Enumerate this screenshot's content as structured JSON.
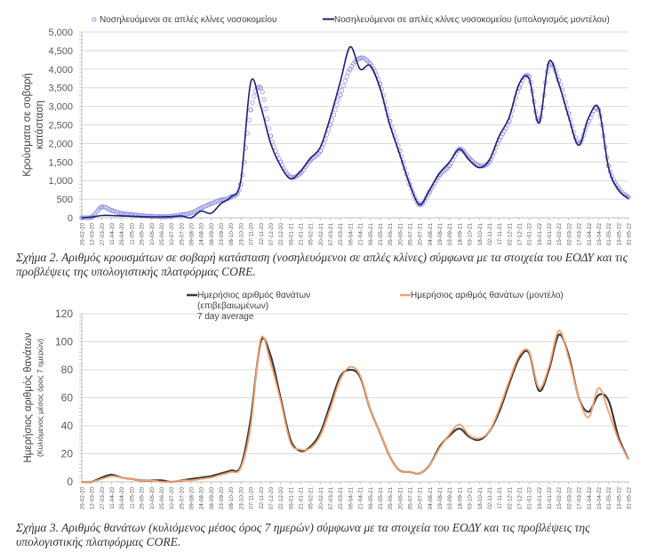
{
  "chart_data": [
    {
      "type": "line",
      "title": "",
      "ylabel": "Κρούσματα σε σοβαρή κατάσταση",
      "ylabel_lines": [
        "Κρούσματα σε σοβαρή",
        "κατάσταση"
      ],
      "xlabel": "",
      "ylim": [
        0,
        5000
      ],
      "yticks": [
        0,
        500,
        1000,
        1500,
        2000,
        2500,
        3000,
        3500,
        4000,
        4500,
        5000
      ],
      "ytick_labels": [
        "0",
        "500",
        "1,000",
        "1,500",
        "2,000",
        "2,500",
        "3,000",
        "3,500",
        "4,000",
        "4,500",
        "5,000"
      ],
      "grid": true,
      "legend_position": "top",
      "x": [
        "26-02-20",
        "12-03-20",
        "27-03-20",
        "11-04-20",
        "26-04-20",
        "11-05-20",
        "26-05-20",
        "10-06-20",
        "25-06-20",
        "10-07-20",
        "25-07-20",
        "09-08-20",
        "24-08-20",
        "08-09-20",
        "23-09-20",
        "08-10-20",
        "23-10-20",
        "07-11-20",
        "22-11-20",
        "07-12-20",
        "22-12-20",
        "06-01-21",
        "21-01-21",
        "05-02-21",
        "20-02-21",
        "07-03-21",
        "22-03-21",
        "06-04-21",
        "21-04-21",
        "06-05-21",
        "21-05-21",
        "05-06-21",
        "20-06-21",
        "05-07-21",
        "20-07-21",
        "04-08-21",
        "19-08-21",
        "03-09-21",
        "18-09-21",
        "03-10-21",
        "18-10-21",
        "02-11-21",
        "17-11-21",
        "02-12-21",
        "17-12-21",
        "01-01-22",
        "16-01-22",
        "31-01-22",
        "15-02-22",
        "02-03-22",
        "17-03-22",
        "01-04-22",
        "16-04-22",
        "01-05-22",
        "16-05-22",
        "31-05-22"
      ],
      "series": [
        {
          "name": "Νοσηλευόμενοι σε απλές κλίνες νοσοκομείου",
          "style": "markers",
          "color": "#8f8fe0",
          "values": [
            0,
            20,
            290,
            200,
            120,
            90,
            60,
            40,
            30,
            40,
            80,
            130,
            260,
            380,
            480,
            560,
            900,
            2900,
            3500,
            2200,
            1500,
            1100,
            1200,
            1550,
            1800,
            2500,
            3300,
            4000,
            4300,
            4150,
            3600,
            2600,
            1800,
            900,
            350,
            700,
            1150,
            1400,
            1850,
            1600,
            1400,
            1500,
            2100,
            2600,
            3500,
            3800,
            2600,
            4100,
            3700,
            2800,
            2000,
            2600,
            2900,
            1400,
            800,
            550
          ]
        },
        {
          "name": "Νοσηλευόμενοι σε απλές κλίνες νοσοκομείου (υπολογισμός μοντέλου)",
          "style": "line",
          "color": "#1f1f78",
          "values": [
            0,
            20,
            60,
            60,
            50,
            40,
            30,
            25,
            25,
            30,
            50,
            0,
            180,
            120,
            380,
            560,
            1000,
            3650,
            3000,
            2000,
            1400,
            1050,
            1250,
            1600,
            1900,
            2700,
            3650,
            4600,
            4000,
            4100,
            3500,
            2500,
            1700,
            900,
            350,
            750,
            1200,
            1500,
            1850,
            1550,
            1350,
            1550,
            2200,
            2700,
            3600,
            3750,
            2550,
            4200,
            3600,
            2700,
            1950,
            2700,
            2950,
            1350,
            750,
            520
          ]
        }
      ]
    },
    {
      "type": "line",
      "title": "",
      "ylabel": "Ημερήσιος αριθμός θανάτων (Κυλιόμενος μέσος όρος 7 ημερών)",
      "ylabel_lines": [
        "Ημερήσιος αριθμός θανάτων",
        "(Κυλιόμενος μέσος όρος 7 ημερών)"
      ],
      "xlabel": "",
      "ylim": [
        0,
        120
      ],
      "yticks": [
        0,
        20,
        40,
        60,
        80,
        100,
        120
      ],
      "ytick_labels": [
        "0",
        "20",
        "40",
        "60",
        "80",
        "100",
        "120"
      ],
      "grid": true,
      "legend_position": "top",
      "x": [
        "26-02-20",
        "12-03-20",
        "27-03-20",
        "11-04-20",
        "26-04-20",
        "11-05-20",
        "26-05-20",
        "10-06-20",
        "25-06-20",
        "10-07-20",
        "25-07-20",
        "09-08-20",
        "24-08-20",
        "08-09-20",
        "23-09-20",
        "08-10-20",
        "23-10-20",
        "07-11-20",
        "22-11-20",
        "07-12-20",
        "22-12-20",
        "06-01-21",
        "21-01-21",
        "05-02-21",
        "20-02-21",
        "07-03-21",
        "22-03-21",
        "06-04-21",
        "21-04-21",
        "06-05-21",
        "21-05-21",
        "05-06-21",
        "20-06-21",
        "05-07-21",
        "20-07-21",
        "04-08-21",
        "19-08-21",
        "03-09-21",
        "18-09-21",
        "03-10-21",
        "18-10-21",
        "02-11-21",
        "17-11-21",
        "02-12-21",
        "17-12-21",
        "01-01-22",
        "16-01-22",
        "31-01-22",
        "15-02-22",
        "02-03-22",
        "17-03-22",
        "01-04-22",
        "16-04-22",
        "01-05-22",
        "16-05-22",
        "31-05-22"
      ],
      "series": [
        {
          "name": "Ημερήσιος αριθμός θανάτων (επιβεβαιωμένων) 7 day average",
          "legend_lines": [
            "Ημερήσιος αριθμός θανάτων",
            "(επιβεβαιωμένων)",
            "7 day average"
          ],
          "style": "line",
          "color": "#3a3a3a",
          "values": [
            0,
            0,
            3,
            5,
            3,
            2,
            1,
            1,
            1,
            0,
            1,
            2,
            3,
            4,
            6,
            8,
            11,
            45,
            100,
            90,
            60,
            30,
            22,
            25,
            35,
            55,
            75,
            80,
            75,
            52,
            35,
            18,
            8,
            7,
            6,
            12,
            25,
            33,
            38,
            32,
            30,
            36,
            50,
            70,
            88,
            92,
            65,
            80,
            105,
            90,
            60,
            50,
            62,
            58,
            32,
            16
          ]
        },
        {
          "name": "Ημερήσιος αριθμός θανάτων (μοντέλο)",
          "legend_lines": [
            "Ημερήσιος αριθμός θανάτων (μοντέλο)"
          ],
          "style": "line",
          "color": "#f4a06b",
          "values": [
            0,
            0,
            2,
            4,
            3,
            2,
            1,
            1,
            0,
            0,
            1,
            1,
            2,
            3,
            5,
            7,
            10,
            40,
            102,
            85,
            58,
            28,
            23,
            24,
            33,
            52,
            73,
            82,
            76,
            52,
            35,
            18,
            8,
            7,
            6,
            12,
            24,
            34,
            41,
            33,
            31,
            36,
            52,
            72,
            90,
            93,
            67,
            82,
            108,
            88,
            60,
            46,
            67,
            50,
            30,
            16
          ]
        }
      ]
    }
  ],
  "captions": {
    "figure2": "Σχήμα 2. Αριθμός κρουσμάτων σε σοβαρή κατάσταση (νοσηλευόμενοι σε απλές κλίνες) σύμφωνα με τα στοιχεία του ΕΟΔΥ και τις προβλέψεις της υπολογιστικής πλατφόρμας CORE.",
    "figure3": "Σχήμα 3. Αριθμός θανάτων (κυλιόμενος μέσος όρος 7 ημερών) σύμφωνα με τα στοιχεία του ΕΟΔΥ και τις προβλέψεις της υπολογιστικής πλατφόρμας CORE."
  }
}
